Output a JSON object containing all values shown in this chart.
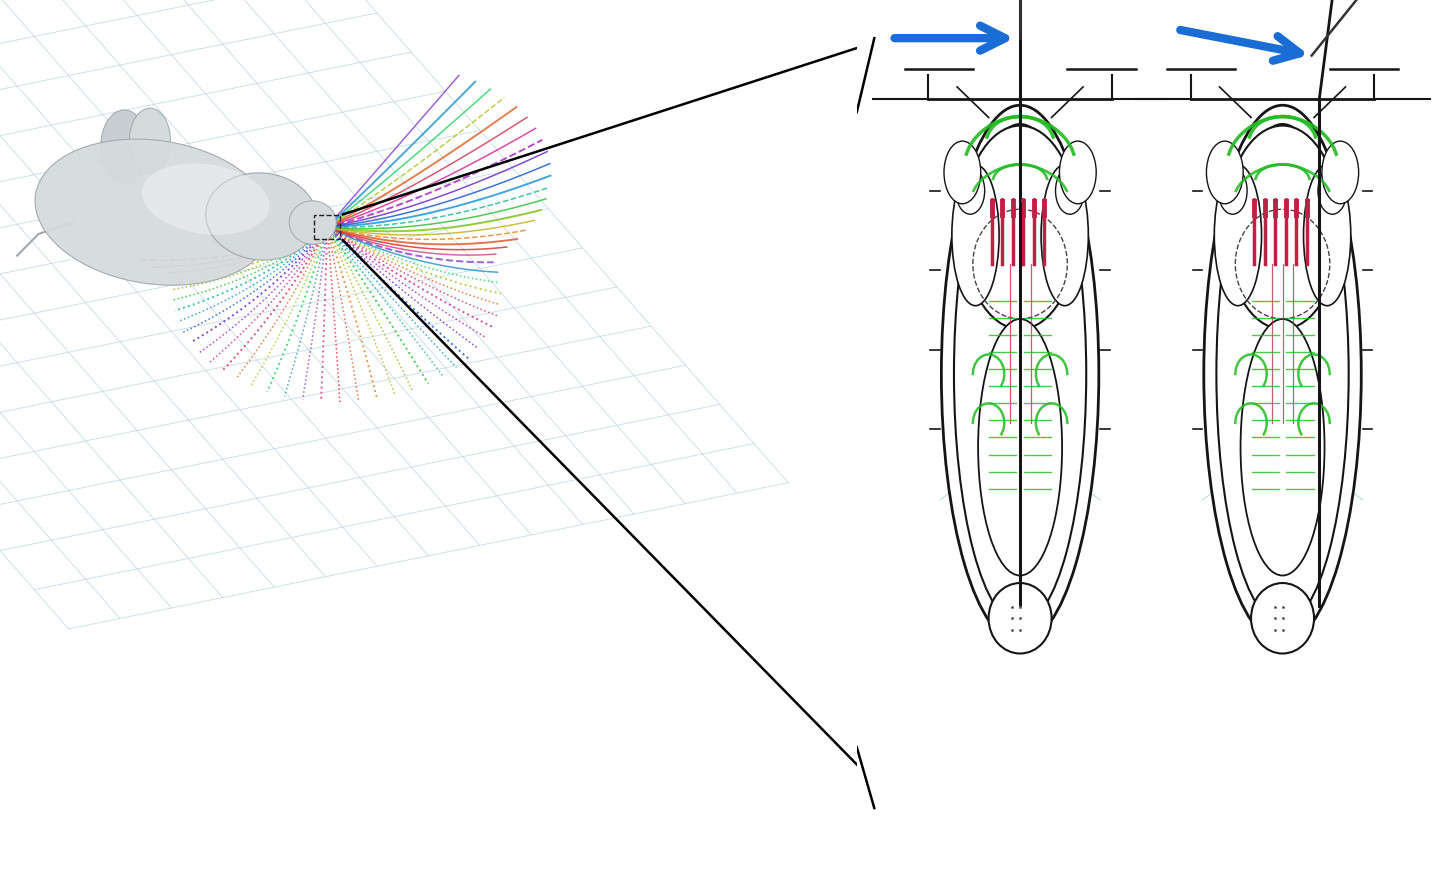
{
  "bg_color": "#ffffff",
  "grid_color": "#b0cce0",
  "arrow_color": "#1a6dd4",
  "line_color": "#000000",
  "body_color": "#d5dadd",
  "body_edge": "#a0a8ac",
  "diagram_outline": "#151515",
  "green_color": "#22bb22",
  "red_color": "#bb2244",
  "blue_light": "#70b8e0",
  "whisker_colors": [
    "#e02020",
    "#e05020",
    "#e08020",
    "#c0b010",
    "#80c010",
    "#20c030",
    "#10b888",
    "#1090d8",
    "#1050d0",
    "#6020c8",
    "#a020c0",
    "#d02090",
    "#d03050",
    "#e06020",
    "#a0c820",
    "#20d060",
    "#2090c8",
    "#8040c8",
    "#d04080"
  ]
}
